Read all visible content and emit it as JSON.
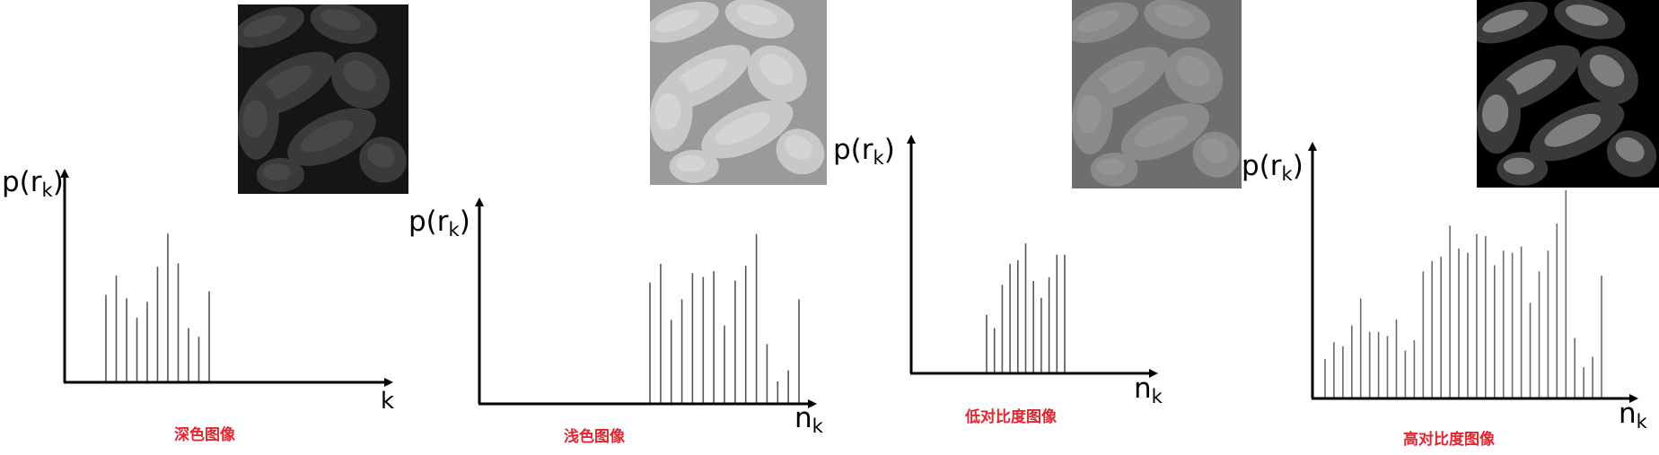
{
  "chart_data": [
    {
      "type": "bar",
      "caption": "深色图像",
      "ylabel": "p(r",
      "ylabel_sub": "k",
      "ylabel_close": ")",
      "xlabel": "k",
      "xlabel_sub": "",
      "values": [
        0.5,
        0.61,
        0.48,
        0.37,
        0.46,
        0.66,
        0.85,
        0.68,
        0.31,
        0.26,
        0.52
      ],
      "thumbnail": {
        "tone": "dark",
        "colors": [
          "#151515",
          "#3a3a3a",
          "#606060"
        ]
      }
    },
    {
      "type": "bar",
      "caption": "浅色图像",
      "ylabel": "p(r",
      "ylabel_sub": "k",
      "ylabel_close": ")",
      "xlabel": "n",
      "xlabel_sub": "k",
      "values": [
        0.65,
        0.75,
        0.45,
        0.56,
        0.7,
        0.68,
        0.71,
        0.42,
        0.66,
        0.74,
        0.91,
        0.32,
        0.12,
        0.18,
        0.56
      ],
      "thumbnail": {
        "tone": "light",
        "colors": [
          "#9a9a9a",
          "#c8c8c8",
          "#ececec"
        ]
      }
    },
    {
      "type": "bar",
      "caption": "低对比度图像",
      "ylabel": "p(r",
      "ylabel_sub": "k",
      "ylabel_close": ")",
      "xlabel": "n",
      "xlabel_sub": "k",
      "values": [
        0.31,
        0.24,
        0.47,
        0.58,
        0.6,
        0.69,
        0.49,
        0.4,
        0.51,
        0.63,
        0.63
      ],
      "thumbnail": {
        "tone": "low-contrast",
        "colors": [
          "#6e6e6e",
          "#8a8a8a",
          "#a6a6a6"
        ]
      }
    },
    {
      "type": "bar",
      "caption": "高对比度图像",
      "ylabel": "p(r",
      "ylabel_sub": "k",
      "ylabel_close": ")",
      "xlabel": "n",
      "xlabel_sub": "k",
      "values": [
        0.19,
        0.27,
        0.25,
        0.35,
        0.48,
        0.32,
        0.32,
        0.3,
        0.38,
        0.23,
        0.28,
        0.61,
        0.66,
        0.68,
        0.83,
        0.72,
        0.7,
        0.79,
        0.78,
        0.64,
        0.71,
        0.7,
        0.73,
        0.46,
        0.61,
        0.71,
        0.84,
        1.0,
        0.29,
        0.15,
        0.2,
        0.59
      ],
      "thumbnail": {
        "tone": "high-contrast",
        "colors": [
          "#000000",
          "#3a3a3a",
          "#ffffff"
        ]
      }
    }
  ]
}
